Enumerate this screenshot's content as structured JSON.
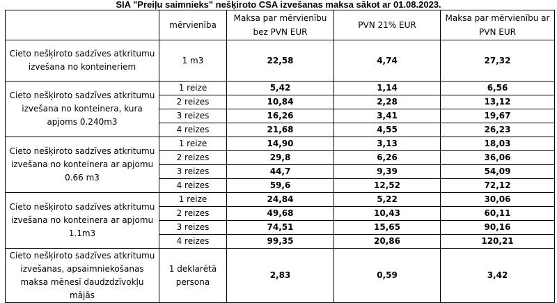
{
  "title": "SIA \"Preiļu saimnieks\" nešķiroto CSA izvešanas maksa sākot ar 01.08.2023.",
  "headers": {
    "service": "",
    "unit": "mērvienība",
    "price_excl_vat": "Maksa par mērvienību bez PVN EUR",
    "vat": "PVN 21% EUR",
    "price_incl_vat": "Maksa par mērvienību ar PVN EUR"
  },
  "groups": [
    {
      "service": "Cieto nešķiroto sadzīves atkritumu izvešana no konteineriem",
      "rows": [
        {
          "unit": "1 m3",
          "price_excl_vat": "22,58",
          "vat": "4,74",
          "price_incl_vat": "27,32"
        }
      ]
    },
    {
      "service": "Cieto nešķiroto sadzīves atkritumu izvešana no konteinera, kura apjoms 0.240m3",
      "rows": [
        {
          "unit": "1 reize",
          "price_excl_vat": "5,42",
          "vat": "1,14",
          "price_incl_vat": "6,56"
        },
        {
          "unit": "2 reizes",
          "price_excl_vat": "10,84",
          "vat": "2,28",
          "price_incl_vat": "13,12"
        },
        {
          "unit": "3 reizes",
          "price_excl_vat": "16,26",
          "vat": "3,41",
          "price_incl_vat": "19,67"
        },
        {
          "unit": "4 reizes",
          "price_excl_vat": "21,68",
          "vat": "4,55",
          "price_incl_vat": "26,23"
        }
      ]
    },
    {
      "service": "Cieto nešķiroto sadzīves atkritumu izvešana no konteinera ar apjomu 0.66 m3",
      "rows": [
        {
          "unit": "1 reize",
          "price_excl_vat": "14,90",
          "vat": "3,13",
          "price_incl_vat": "18,03"
        },
        {
          "unit": "2 reizes",
          "price_excl_vat": "29,8",
          "vat": "6,26",
          "price_incl_vat": "36,06"
        },
        {
          "unit": "3 reizes",
          "price_excl_vat": "44,7",
          "vat": "9,39",
          "price_incl_vat": "54,09"
        },
        {
          "unit": "4 reizes",
          "price_excl_vat": "59,6",
          "vat": "12,52",
          "price_incl_vat": "72,12"
        }
      ]
    },
    {
      "service": "Cieto nešķiroto sadzīves atkritumu izvešana no konteinera ar apjomu 1.1m3",
      "rows": [
        {
          "unit": "1 reize",
          "price_excl_vat": "24,84",
          "vat": "5,22",
          "price_incl_vat": "30,06"
        },
        {
          "unit": "2 reizes",
          "price_excl_vat": "49,68",
          "vat": "10,43",
          "price_incl_vat": "60,11"
        },
        {
          "unit": "3 reizes",
          "price_excl_vat": "74,51",
          "vat": "15,65",
          "price_incl_vat": "90,16"
        },
        {
          "unit": "4 reizes",
          "price_excl_vat": "99,35",
          "vat": "20,86",
          "price_incl_vat": "120,21"
        }
      ]
    },
    {
      "service": "Cieto nešķiroto sadzīves atkritumu izvešanas, apsaimniekošanas maksa mēnesī daudzdzīvokļu mājās",
      "rows": [
        {
          "unit": "1 deklarētā persona",
          "price_excl_vat": "2,83",
          "vat": "0,59",
          "price_incl_vat": "3,42"
        }
      ]
    }
  ]
}
